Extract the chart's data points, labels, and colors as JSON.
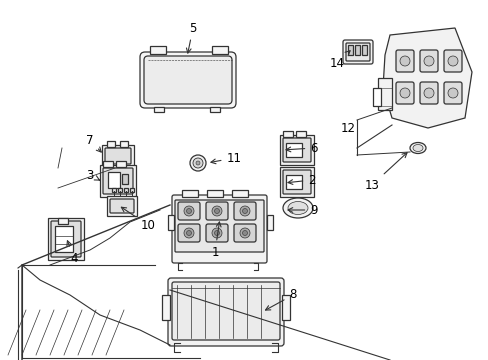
{
  "bg_color": "#ffffff",
  "line_color": "#333333",
  "fig_width": 4.89,
  "fig_height": 3.6,
  "dpi": 100
}
